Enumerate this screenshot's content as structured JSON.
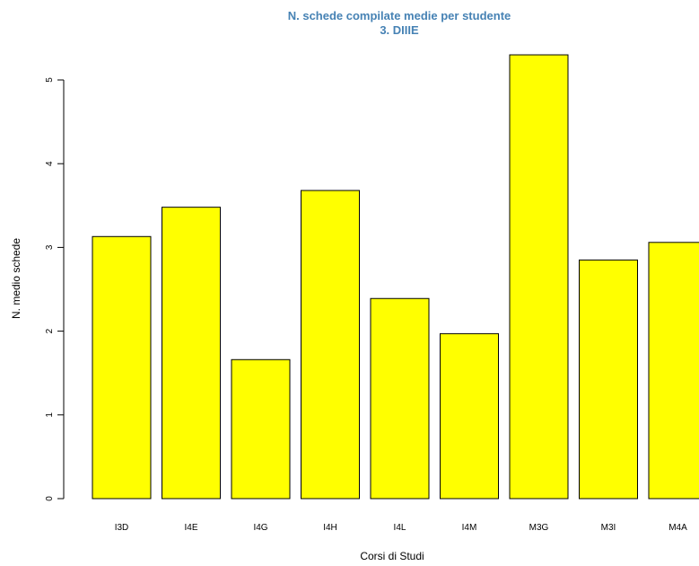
{
  "chart_data": {
    "type": "bar",
    "title": "N. schede compilate medie per studente",
    "subtitle": "3. DIIIE",
    "xlabel": "Corsi di Studi",
    "ylabel": "N. medio schede",
    "categories": [
      "I3D",
      "I4E",
      "I4G",
      "I4H",
      "I4L",
      "I4M",
      "M3G",
      "M3I",
      "M4A"
    ],
    "values": [
      3.13,
      3.48,
      1.66,
      3.68,
      2.39,
      1.97,
      5.3,
      2.85,
      3.06
    ],
    "yticks": [
      0,
      1,
      2,
      3,
      4,
      5
    ],
    "ylim": [
      0,
      5.5
    ],
    "grid": false,
    "colors": {
      "bar_fill": "#ffff00",
      "bar_stroke": "#000000",
      "title": "#4682b4"
    }
  }
}
